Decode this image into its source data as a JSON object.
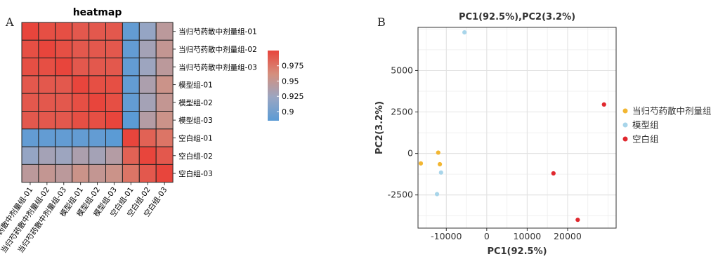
{
  "panels": {
    "a": "A",
    "b": "B"
  },
  "chart_data": [
    {
      "type": "heatmap",
      "title": "heatmap",
      "rows": [
        "当归芍药散中剂量组-01",
        "当归芍药散中剂量组-02",
        "当归芍药散中剂量组-03",
        "模型组-01",
        "模型组-02",
        "模型组-03",
        "空白组-01",
        "空白组-02",
        "空白组-03"
      ],
      "cols": [
        "当归芍药散中剂量组-01",
        "当归芍药散中剂量组-02",
        "当归芍药散中剂量组-03",
        "模型组-01",
        "模型组-02",
        "模型组-03",
        "空白组-01",
        "空白组-02",
        "空白组-03"
      ],
      "values": [
        [
          1.0,
          0.995,
          0.995,
          0.99,
          0.99,
          0.99,
          0.89,
          0.92,
          0.945
        ],
        [
          0.995,
          1.0,
          0.995,
          0.99,
          0.99,
          0.99,
          0.89,
          0.93,
          0.95
        ],
        [
          0.995,
          0.995,
          1.0,
          0.99,
          0.99,
          0.99,
          0.89,
          0.925,
          0.945
        ],
        [
          0.99,
          0.99,
          0.99,
          1.0,
          0.995,
          0.995,
          0.89,
          0.935,
          0.955
        ],
        [
          0.99,
          0.99,
          0.99,
          0.995,
          1.0,
          0.995,
          0.89,
          0.93,
          0.95
        ],
        [
          0.99,
          0.99,
          0.99,
          0.995,
          0.995,
          1.0,
          0.885,
          0.94,
          0.955
        ],
        [
          0.89,
          0.89,
          0.89,
          0.89,
          0.89,
          0.885,
          1.0,
          0.985,
          0.975
        ],
        [
          0.92,
          0.93,
          0.925,
          0.935,
          0.93,
          0.94,
          0.985,
          1.0,
          0.99
        ],
        [
          0.945,
          0.95,
          0.945,
          0.955,
          0.95,
          0.955,
          0.975,
          0.99,
          1.0
        ]
      ],
      "colorbar": {
        "ticks": [
          "0.975",
          "0.95",
          "0.925",
          "0.9"
        ],
        "tick_values": [
          0.975,
          0.95,
          0.925,
          0.9
        ],
        "range": [
          0.885,
          1.0
        ],
        "colors": [
          "#5b9bd5",
          "#9aa6c2",
          "#d58f7d",
          "#e8453c"
        ]
      }
    },
    {
      "type": "scatter",
      "title": "PC1(92.5%),PC2(3.2%)",
      "xlabel": "PC1(92.5%)",
      "ylabel": "PC2(3.2%)",
      "xlim": [
        -17000,
        32000
      ],
      "ylim": [
        -4500,
        7600
      ],
      "xticks": [
        -10000,
        0,
        10000,
        20000
      ],
      "xtick_labels": [
        "-10000",
        "0",
        "10000",
        "20000"
      ],
      "yticks": [
        -2500,
        0,
        2500,
        5000
      ],
      "ytick_labels": [
        "-2500",
        "0",
        "2500",
        "5000"
      ],
      "grid": true,
      "legend_position": "right",
      "series": [
        {
          "name": "当归芍药散中剂量组",
          "color": "#f2b632",
          "points": [
            [
              -12000,
              50
            ],
            [
              -16300,
              -600
            ],
            [
              -11600,
              -650
            ]
          ]
        },
        {
          "name": "模型组",
          "color": "#a8d5ea",
          "points": [
            [
              -5500,
              7300
            ],
            [
              -11300,
              -1150
            ],
            [
              -12300,
              -2450
            ]
          ]
        },
        {
          "name": "空白组",
          "color": "#e0282e",
          "points": [
            [
              29000,
              2950
            ],
            [
              16500,
              -1200
            ],
            [
              22500,
              -4000
            ]
          ]
        }
      ]
    }
  ]
}
